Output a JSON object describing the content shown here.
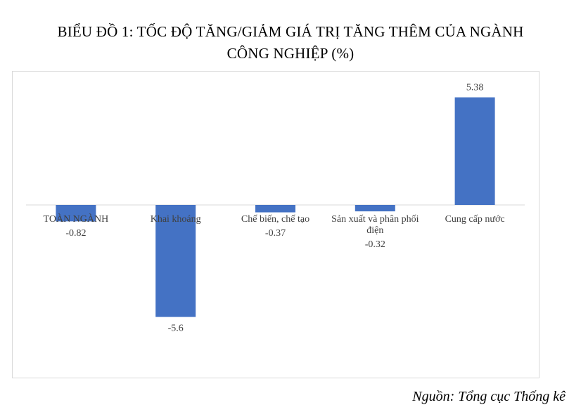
{
  "title_lines": [
    "BIỂU ĐỒ 1: TỐC ĐỘ TĂNG/GIẢM GIÁ TRỊ TĂNG THÊM CỦA NGÀNH",
    "CÔNG NGHIỆP (%)"
  ],
  "source": "Nguồn: Tổng cục Thống kê",
  "chart_data": {
    "type": "bar",
    "categories": [
      [
        "TOÀN NGÀNH"
      ],
      [
        "Khai khoáng"
      ],
      [
        "Chế biến, chế tạo"
      ],
      [
        "Sản xuất và phân phối",
        "điện"
      ],
      [
        "Cung cấp nước"
      ]
    ],
    "values": [
      -0.82,
      -5.6,
      -0.37,
      -0.32,
      5.38
    ],
    "data_labels": [
      "-0.82",
      "-5.6",
      "-0.37",
      "-0.32",
      "5.38"
    ],
    "bar_color": "#4472C4",
    "axis_color": "#d9d9d9",
    "grid": false,
    "legend": false
  }
}
